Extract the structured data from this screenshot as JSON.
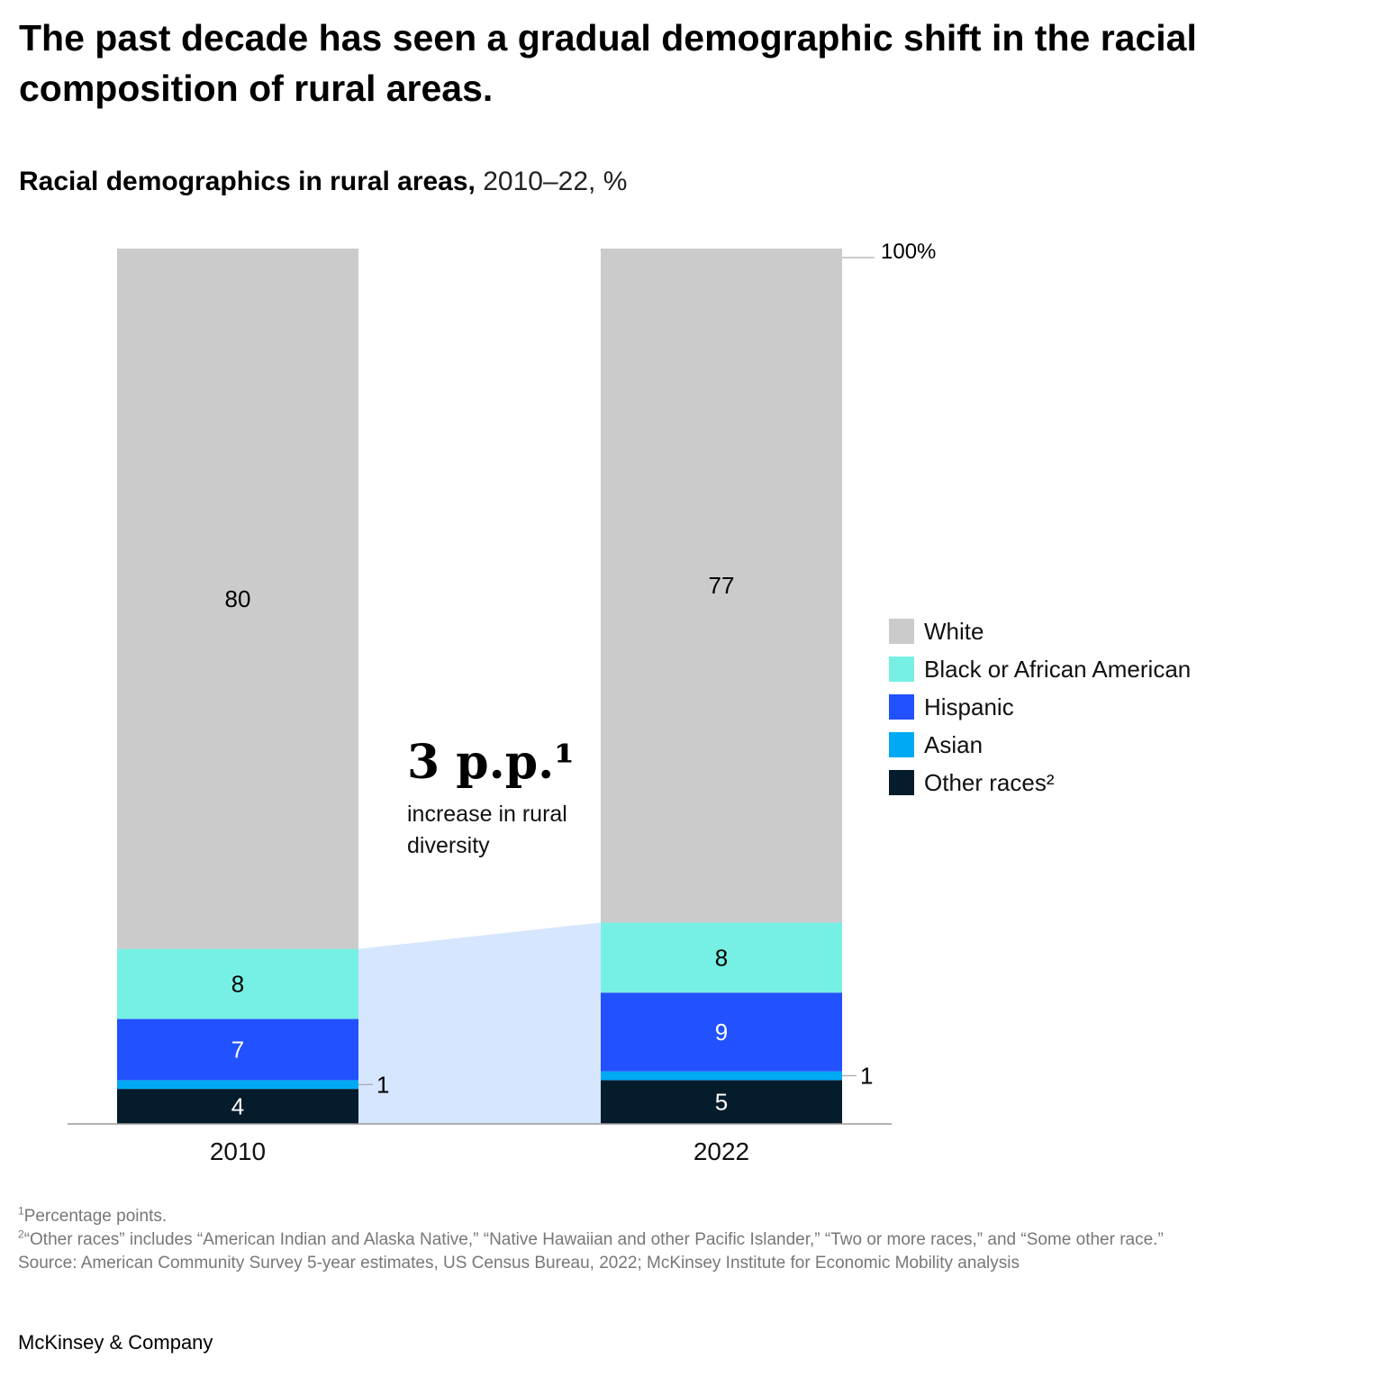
{
  "headline": "The past decade has seen a gradual demographic shift in the racial composition of rural areas.",
  "subtitle": {
    "bold": "Racial demographics in rural areas,",
    "rest": " 2010–22, %"
  },
  "annotation": {
    "value": "3 p.p.¹",
    "description": "increase in rural diversity"
  },
  "footnotes": [
    {
      "marker": "1",
      "text": "Percentage points."
    },
    {
      "marker": "2",
      "text": "“Other races” includes “American Indian and Alaska Native,” “Native Hawaiian and other Pacific Islander,” “Two or more races,” and “Some other race.”"
    },
    {
      "marker": "",
      "text": " Source: American Community Survey 5-year estimates, US Census Bureau, 2022; McKinsey Institute for Economic Mobility analysis"
    }
  ],
  "brand": "McKinsey & Company",
  "chart_data": {
    "type": "bar",
    "stacked": true,
    "orientation": "vertical",
    "categories": [
      "2010",
      "2022"
    ],
    "ylim": [
      0,
      100
    ],
    "top_label": "100%",
    "series": [
      {
        "name": "Other races²",
        "color": "#051c2c",
        "label_color": "#ffffff",
        "values": [
          4,
          5
        ]
      },
      {
        "name": "Asian",
        "color": "#00a9f4",
        "label_color": "#ffffff",
        "values": [
          1,
          1
        ],
        "label_outside": true
      },
      {
        "name": "Hispanic",
        "color": "#2251ff",
        "label_color": "#ffffff",
        "values": [
          7,
          9
        ]
      },
      {
        "name": "Black or African American",
        "color": "#76f0e4",
        "label_color": "#000000",
        "values": [
          8,
          8
        ]
      },
      {
        "name": "White",
        "color": "#cbcbcb",
        "label_color": "#000000",
        "values": [
          80,
          77
        ]
      }
    ],
    "legend_order": [
      "White",
      "Black or African American",
      "Hispanic",
      "Asian",
      "Other races²"
    ],
    "highlight_color": "#d6e6ff",
    "legend_position": "right",
    "grid": false
  }
}
